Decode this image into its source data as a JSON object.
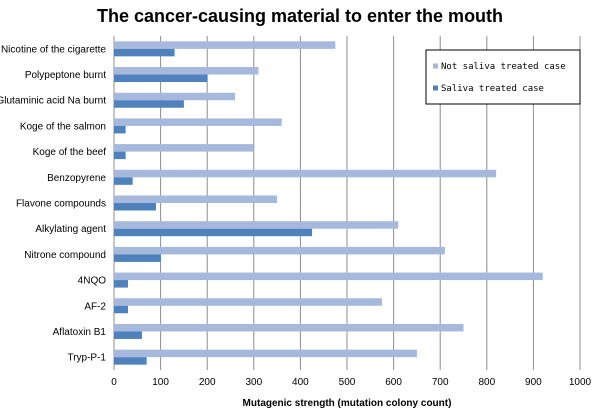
{
  "chart_data": {
    "type": "bar",
    "orientation": "horizontal",
    "title": "The cancer-causing material to enter the mouth",
    "xlabel": "Mutagenic strength (mutation colony count)",
    "ylabel": "",
    "xlim": [
      0,
      1000
    ],
    "xticks": [
      0,
      100,
      200,
      300,
      400,
      500,
      600,
      700,
      800,
      900,
      1000
    ],
    "grid": "vertical",
    "legend_position": "top-right",
    "categories": [
      "Nicotine of the cigarette",
      "Polypeptone burnt",
      "Glutaminic acid Na burnt",
      "Koge of the salmon",
      "Koge of the beef",
      "Benzopyrene",
      "Flavone compounds",
      "Alkylating agent",
      "Nitrone compound",
      "4NQO",
      "AF-2",
      "Aflatoxin B1",
      "Tryp-P-1"
    ],
    "series": [
      {
        "name": "Not saliva treated case",
        "color": "#a6b8db",
        "values": [
          475,
          310,
          260,
          360,
          300,
          820,
          350,
          610,
          710,
          920,
          575,
          750,
          650
        ]
      },
      {
        "name": "Saliva treated case",
        "color": "#4f81bd",
        "values": [
          130,
          200,
          150,
          25,
          25,
          40,
          90,
          425,
          100,
          30,
          30,
          60,
          70
        ]
      }
    ]
  },
  "colors": {
    "grid": "#8c8c8c",
    "axis": "#8c8c8c"
  }
}
